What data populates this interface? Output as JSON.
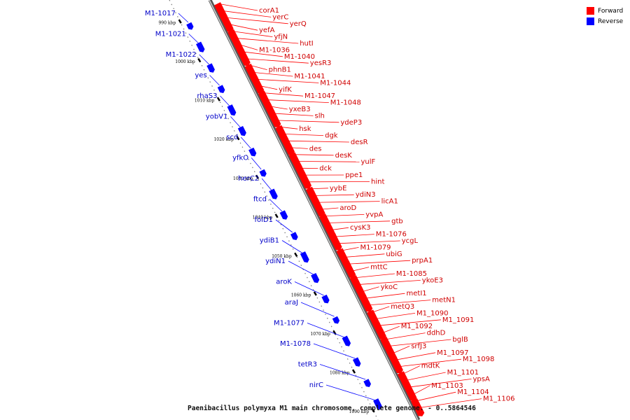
{
  "caption": "Paenibacillus polymyxa M1 main chromosome, complete genome. - 0..5864546",
  "legend": [
    {
      "label": "Forward",
      "color": "#ff0000"
    },
    {
      "label": "Reverse",
      "color": "#0000ff"
    }
  ],
  "colors": {
    "forward": "#ff0000",
    "reverse": "#0000ff",
    "backbone": "#888888"
  },
  "ticks": [
    {
      "kbp": 990,
      "label": "990 kbp"
    },
    {
      "kbp": 1000,
      "label": "1000 kbp"
    },
    {
      "kbp": 1010,
      "label": "1010 kbp"
    },
    {
      "kbp": 1020,
      "label": "1020 kbp"
    },
    {
      "kbp": 1030,
      "label": "1030 kbp"
    },
    {
      "kbp": 1040,
      "label": "1040 kbp"
    },
    {
      "kbp": 1050,
      "label": "1050 kbp"
    },
    {
      "kbp": 1060,
      "label": "1060 kbp"
    },
    {
      "kbp": 1070,
      "label": "1070 kbp"
    },
    {
      "kbp": 1080,
      "label": "1080 kbp"
    },
    {
      "kbp": 1090,
      "label": "1090 kbp"
    }
  ],
  "reverse_genes": [
    "M1-1017",
    "M1-1021",
    "M1-1022",
    "yes",
    "rhaS3",
    "yobV1",
    "scd",
    "yfkO",
    "herC2",
    "ftcd",
    "folD1",
    "ydiB1",
    "ydiN1",
    "aroK",
    "araJ",
    "M1-1077",
    "M1-1078",
    "tetR3",
    "nirC"
  ],
  "forward_genes": [
    "corA1",
    "yerC",
    "yerQ",
    "yefA",
    "yfjN",
    "hutI",
    "M1-1036",
    "M1-1040",
    "yesR3",
    "phnB1",
    "M1-1041",
    "M1-1044",
    "yifK",
    "M1-1047",
    "M1-1048",
    "yxeB3",
    "slh",
    "ydeP3",
    "hsk",
    "dgk",
    "desR",
    "des",
    "desK",
    "yulF",
    "dck",
    "ppe1",
    "hint",
    "yybE",
    "ydiN3",
    "licA1",
    "aroD",
    "yvpA",
    "gtb",
    "cysK3",
    "M1-1076",
    "ycgL",
    "M1-1079",
    "ubiG",
    "prpA1",
    "mttC",
    "M1-1085",
    "ykoE3",
    "ykoC",
    "metI1",
    "metN1",
    "metQ3",
    "M1_1090",
    "M1_1091",
    "M1_1092",
    "ddhD",
    "bglB",
    "srfJ3",
    "M1_1097",
    "M1_1098",
    "mdtK",
    "M1_1101",
    "ypsA",
    "M1_1103",
    "M1_1104",
    "M1_1106"
  ]
}
